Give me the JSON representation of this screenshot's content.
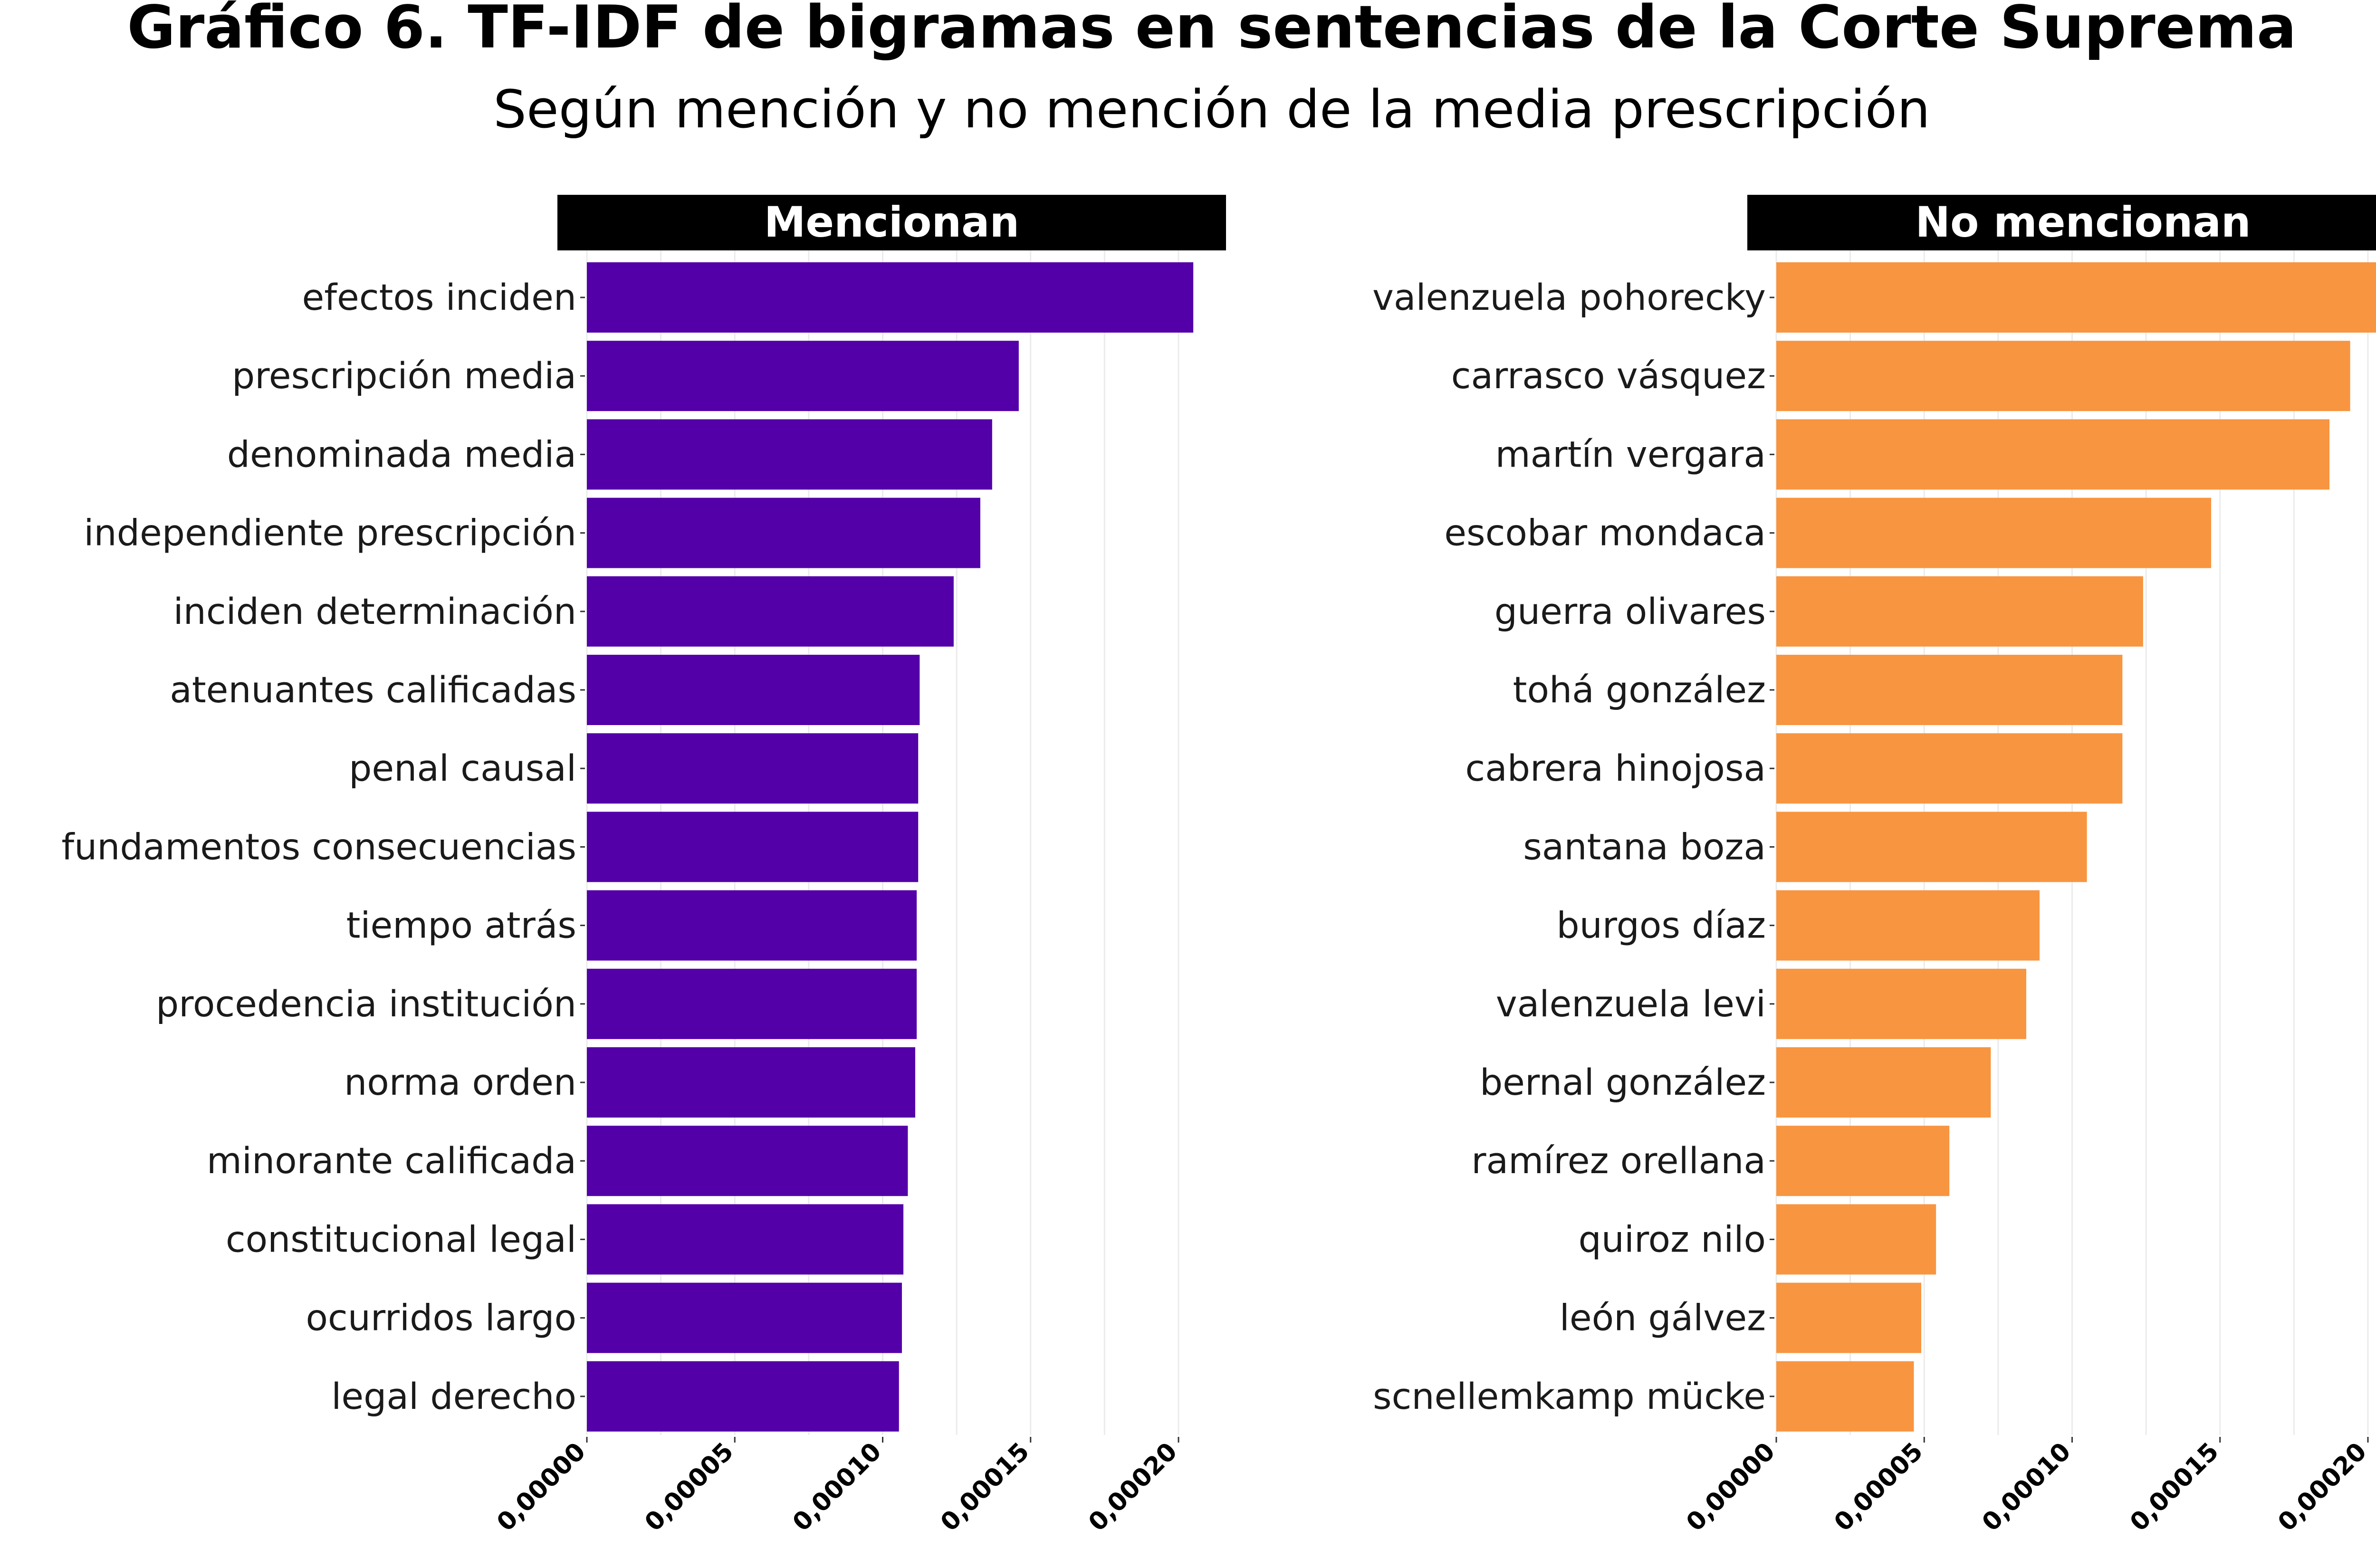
{
  "title": "Gráfico 6. TF-IDF de bigramas en sentencias de la Corte Suprema",
  "subtitle": "Según mención y no mención de la media prescripción",
  "chart_data": {
    "type": "bar",
    "orientation": "horizontal",
    "grid": "vertical-major-and-minor",
    "xlim": [
      0,
      0.000215
    ],
    "x_ticks": [
      0,
      5e-05,
      0.0001,
      0.00015,
      0.0002
    ],
    "x_tick_labels": [
      "0,00000",
      "0,00005",
      "0,00010",
      "0,00015",
      "0,00020"
    ],
    "panels": [
      {
        "strip_label": "Mencionan",
        "color": "#5300a8",
        "categories": [
          "efectos inciden",
          "prescripción media",
          "denominada media",
          "independiente prescripción",
          "inciden determinación",
          "atenuantes calificadas",
          "penal causal",
          "fundamentos consecuencias",
          "tiempo atrás",
          "procedencia institución",
          "norma orden",
          "minorante calificada",
          "constitucional legal",
          "ocurridos largo",
          "legal derecho"
        ],
        "values": [
          0.000205,
          0.000146,
          0.000137,
          0.000133,
          0.000124,
          0.0001125,
          0.000112,
          0.000112,
          0.0001115,
          0.0001115,
          0.000111,
          0.0001085,
          0.000107,
          0.0001065,
          0.0001055
        ]
      },
      {
        "strip_label": "No mencionan",
        "color": "#f89540",
        "categories": [
          "valenzuela pohorecky",
          "carrasco vásquez",
          "martín vergara",
          "escobar mondaca",
          "guerra olivares",
          "tohá gonzález",
          "cabrera hinojosa",
          "santana boza",
          "burgos díaz",
          "valenzuela levi",
          "bernal gonzález",
          "ramírez orellana",
          "quiroz nilo",
          "león gálvez",
          "scnellemkamp mücke"
        ],
        "values": [
          0.000205,
          0.000194,
          0.000187,
          0.000147,
          0.000124,
          0.000117,
          0.000117,
          0.000105,
          8.9e-05,
          8.45e-05,
          7.25e-05,
          5.85e-05,
          5.4e-05,
          4.9e-05,
          4.65e-05
        ]
      }
    ]
  }
}
